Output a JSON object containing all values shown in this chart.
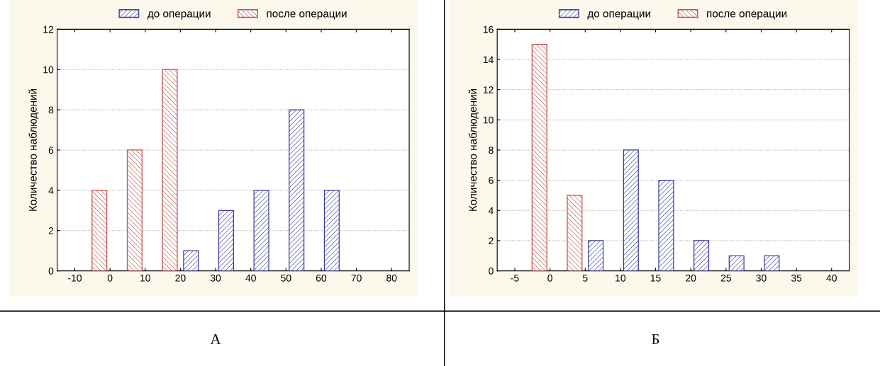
{
  "chart_data": [
    {
      "type": "bar",
      "ylabel": "Количество наблюдений",
      "annotations": [
        "А"
      ],
      "legend": "top",
      "grid": "y",
      "series": [
        {
          "name": "до операции",
          "color": "#3b3b9e",
          "x": [
            23,
            33,
            43,
            53,
            63
          ],
          "values": [
            1,
            3,
            4,
            8,
            4
          ]
        },
        {
          "name": "после операции",
          "color": "#c0504d",
          "x": [
            -3,
            7,
            17
          ],
          "values": [
            4,
            6,
            10
          ]
        }
      ],
      "xlim": [
        -15,
        85
      ],
      "xticks": [
        -10,
        0,
        10,
        20,
        30,
        40,
        50,
        60,
        70,
        80
      ],
      "ylim": [
        0,
        12
      ],
      "yticks": [
        0,
        2,
        4,
        6,
        8,
        10,
        12
      ]
    },
    {
      "type": "bar",
      "ylabel": "Количество наблюдений",
      "annotations": [
        "Б"
      ],
      "legend": "top",
      "grid": "y",
      "series": [
        {
          "name": "до операции",
          "color": "#3b3b9e",
          "x": [
            6.5,
            11.5,
            16.5,
            21.5,
            26.5,
            31.5
          ],
          "values": [
            2,
            8,
            6,
            2,
            1,
            1
          ]
        },
        {
          "name": "после операции",
          "color": "#c0504d",
          "x": [
            -1.5,
            3.5
          ],
          "values": [
            15,
            5
          ]
        }
      ],
      "xlim": [
        -7.5,
        42.5
      ],
      "xticks": [
        -5,
        0,
        5,
        10,
        15,
        20,
        25,
        30,
        35,
        40
      ],
      "ylim": [
        0,
        16
      ],
      "yticks": [
        0,
        2,
        4,
        6,
        8,
        10,
        12,
        14,
        16
      ]
    }
  ]
}
